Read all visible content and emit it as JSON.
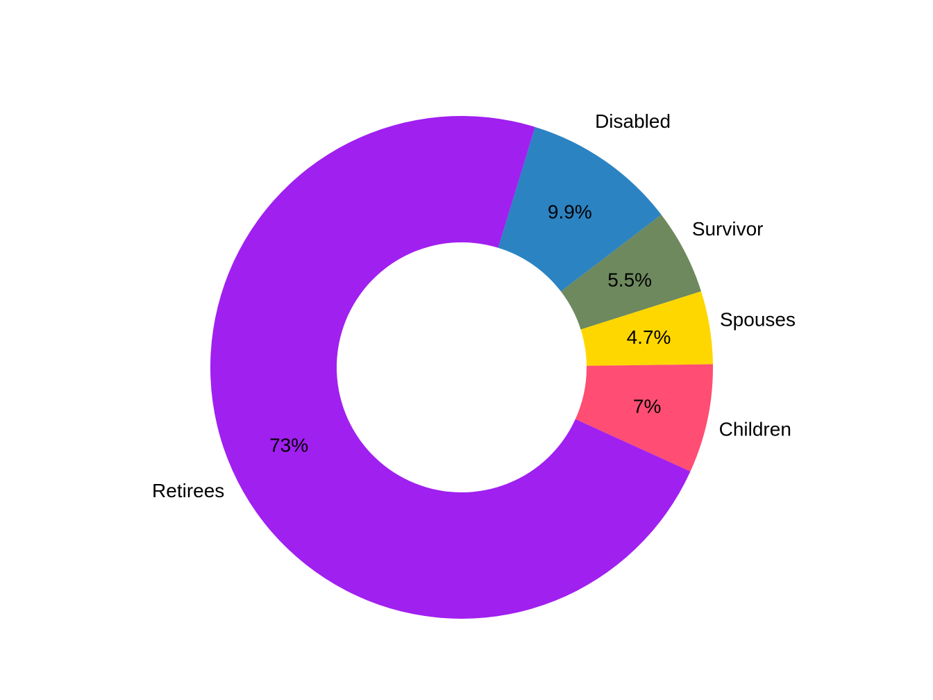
{
  "chart_data": {
    "type": "pie",
    "donut": true,
    "title": "",
    "categories": [
      "Disabled",
      "Survivor",
      "Spouses",
      "Children",
      "Retirees"
    ],
    "values": [
      9.9,
      5.5,
      4.7,
      7,
      73
    ],
    "value_labels": [
      "9.9%",
      "5.5%",
      "4.7%",
      "7%",
      "73%"
    ],
    "colors": [
      "#2B83C2",
      "#6E895E",
      "#FFD700",
      "#FF4D73",
      "#A020F0"
    ],
    "legend": "none",
    "grid": false
  }
}
